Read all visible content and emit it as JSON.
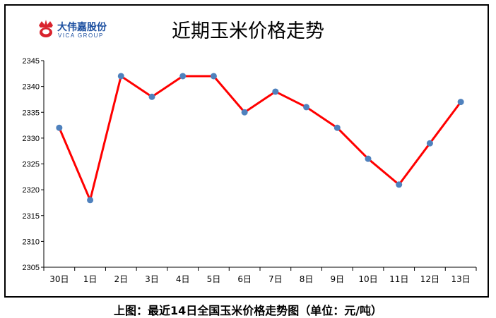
{
  "logo": {
    "name_cn": "大伟嘉股份",
    "name_en": "VICA GROUP",
    "icon": "crown-logo-icon"
  },
  "caption": "上图：最近14日全国玉米价格走势图（单位：元/吨）",
  "colors": {
    "line": "#ff0000",
    "marker": "#4f81bd",
    "axis": "#000000",
    "logo": "#1c4fa0"
  },
  "chart_data": {
    "type": "line",
    "title": "近期玉米价格走势",
    "xlabel": "",
    "ylabel": "",
    "categories": [
      "30日",
      "1日",
      "2日",
      "3日",
      "4日",
      "5日",
      "6日",
      "7日",
      "8日",
      "9日",
      "10日",
      "11日",
      "12日",
      "13日"
    ],
    "series": [
      {
        "values": [
          2332,
          2318,
          2342,
          2338,
          2342,
          2342,
          2335,
          2339,
          2336,
          2332,
          2326,
          2321,
          2329,
          2337
        ]
      }
    ],
    "ylim": [
      2305,
      2345
    ],
    "yticks": [
      2305,
      2310,
      2315,
      2320,
      2325,
      2330,
      2335,
      2340,
      2345
    ],
    "grid": false,
    "legend": "none"
  }
}
